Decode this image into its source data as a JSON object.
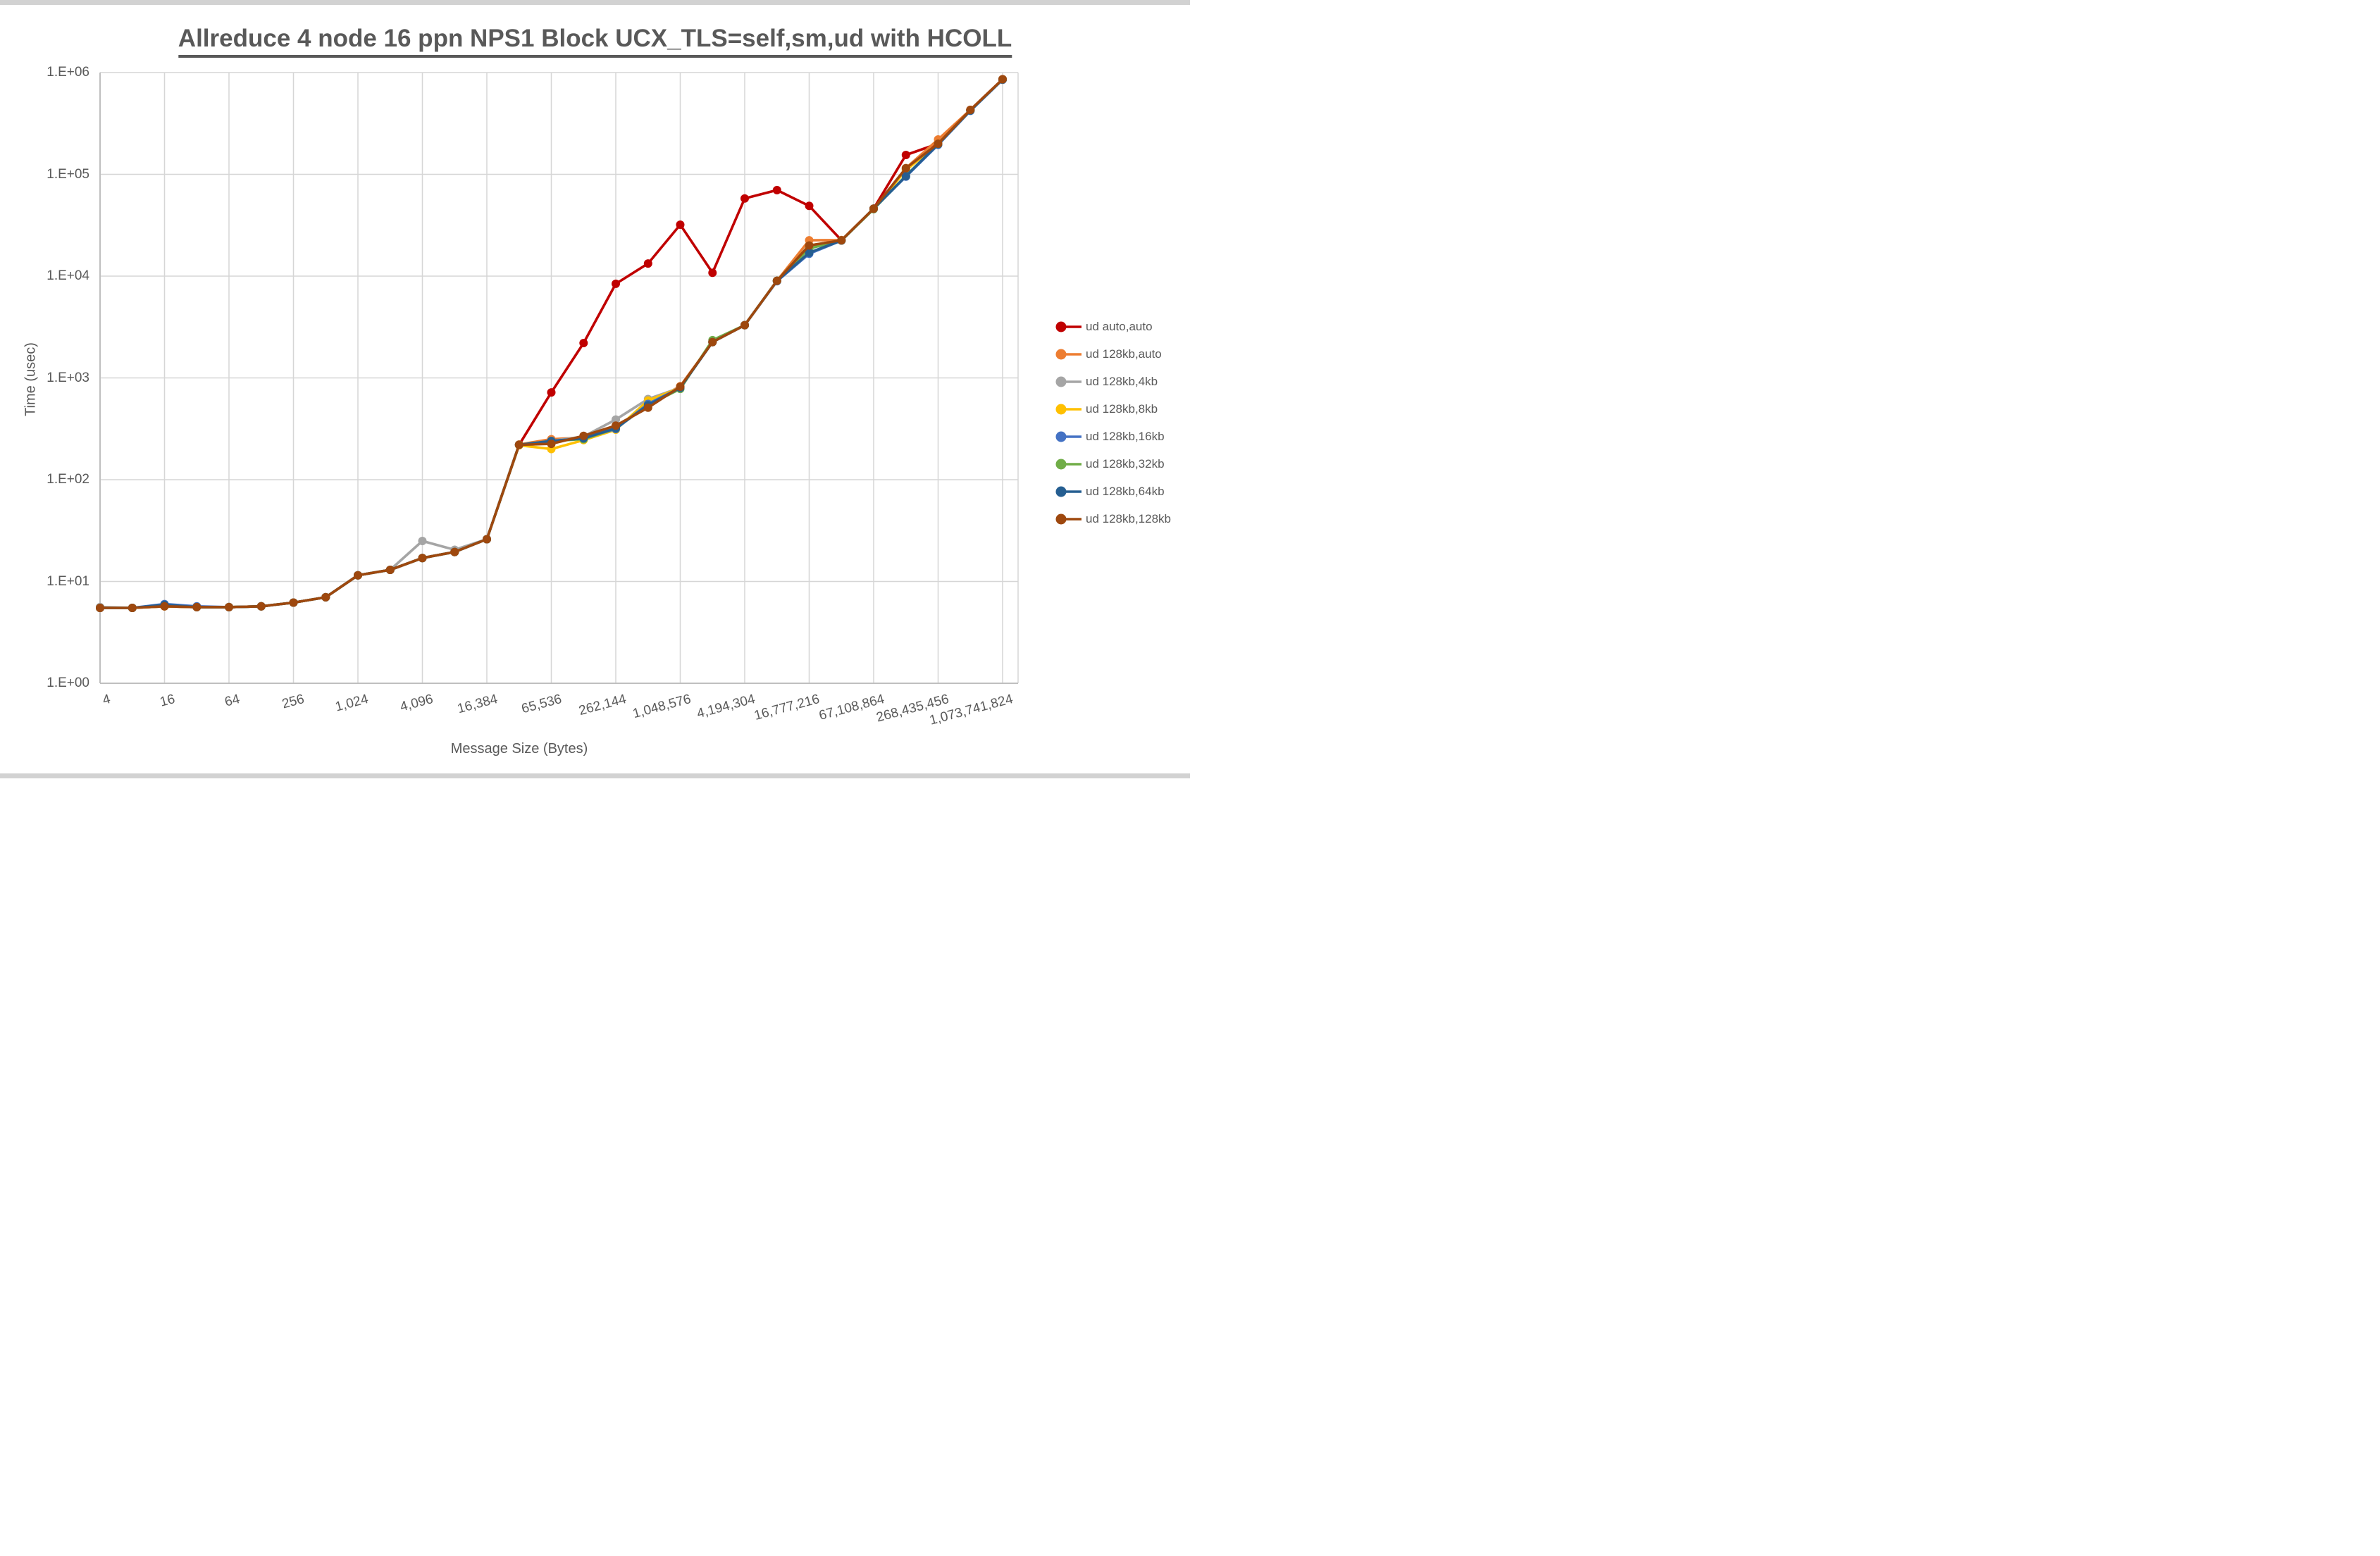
{
  "title": "Allreduce 4 node 16 ppn NPS1 Block UCX_TLS=self,sm,ud with HCOLL",
  "y_axis": {
    "title": "Time (usec)",
    "tick_labels": [
      "1.E+00",
      "1.E+01",
      "1.E+02",
      "1.E+03",
      "1.E+04",
      "1.E+05",
      "1.E+06"
    ]
  },
  "x_axis": {
    "title": "Message Size (Bytes)",
    "tick_labels": [
      "4",
      "16",
      "64",
      "256",
      "1,024",
      "4,096",
      "16,384",
      "65,536",
      "262,144",
      "1,048,576",
      "4,194,304",
      "16,777,216",
      "67,108,864",
      "268,435,456",
      "1,073,741,824"
    ]
  },
  "legend_items": [
    "ud auto,auto",
    "ud 128kb,auto",
    "ud 128kb,4kb",
    "ud 128kb,8kb",
    "ud 128kb,16kb",
    "ud 128kb,32kb",
    "ud 128kb,64kb",
    "ud 128kb,128kb"
  ],
  "colors": {
    "text": "#595959",
    "gridline": "#D6D6D6",
    "axis_frame": "#BFBFBF",
    "background": "#FFFFFF",
    "edge_strip": "#D2D2D2"
  },
  "chart_data": {
    "type": "line",
    "title": "Allreduce 4 node 16 ppn NPS1 Block UCX_TLS=self,sm,ud with HCOLL",
    "xlabel": "Message Size (Bytes)",
    "ylabel": "Time (usec)",
    "x_scale": "log2",
    "y_scale": "log10",
    "ylim": [
      1,
      1000000
    ],
    "grid": true,
    "legend_position": "right",
    "marker": "circle",
    "x": [
      4,
      8,
      16,
      32,
      64,
      128,
      256,
      512,
      1024,
      2048,
      4096,
      8192,
      16384,
      32768,
      65536,
      131072,
      262144,
      524288,
      1048576,
      2097152,
      4194304,
      8388608,
      16777216,
      33554432,
      67108864,
      134217728,
      268435456,
      536870912,
      1073741824
    ],
    "series": [
      {
        "name": "ud auto,auto",
        "color": "#C00000",
        "values": [
          5.5,
          5.5,
          5.7,
          5.6,
          5.6,
          5.7,
          6.2,
          7.0,
          11.5,
          13,
          17,
          19.5,
          26,
          220,
          720,
          2200,
          8400,
          13300,
          32000,
          10800,
          58000,
          70000,
          49000,
          22500,
          46000,
          155000,
          200000,
          430000,
          860000
        ]
      },
      {
        "name": "ud 128kb,auto",
        "color": "#ED7D31",
        "values": [
          5.5,
          5.5,
          5.8,
          5.6,
          5.6,
          5.7,
          6.2,
          7.0,
          11.5,
          13,
          17,
          19.5,
          26,
          222,
          250,
          260,
          320,
          550,
          830,
          2250,
          3300,
          9000,
          22500,
          22600,
          46000,
          115000,
          220000,
          430000,
          860000
        ]
      },
      {
        "name": "ud 128kb,4kb",
        "color": "#A5A5A5",
        "values": [
          5.6,
          5.5,
          5.7,
          5.6,
          5.6,
          5.7,
          6.2,
          7.0,
          11.5,
          13,
          25,
          20.5,
          26,
          220,
          240,
          265,
          390,
          620,
          800,
          2250,
          3300,
          9000,
          20000,
          22400,
          46000,
          110000,
          200000,
          425000,
          855000
        ]
      },
      {
        "name": "ud 128kb,8kb",
        "color": "#FFC000",
        "values": [
          5.5,
          5.5,
          5.7,
          5.6,
          5.6,
          5.7,
          6.2,
          7.0,
          11.5,
          13,
          17,
          19.5,
          26,
          218,
          200,
          245,
          310,
          600,
          800,
          2250,
          3300,
          9000,
          20000,
          22400,
          46000,
          110000,
          200000,
          425000,
          855000
        ]
      },
      {
        "name": "ud 128kb,16kb",
        "color": "#4472C4",
        "values": [
          5.5,
          5.5,
          6.0,
          5.7,
          5.6,
          5.7,
          6.2,
          7.0,
          11.5,
          13,
          17,
          19.5,
          26,
          220,
          240,
          255,
          315,
          555,
          800,
          2250,
          3300,
          8900,
          16600,
          22400,
          46000,
          95000,
          195000,
          420000,
          850000
        ]
      },
      {
        "name": "ud 128kb,32kb",
        "color": "#70AD47",
        "values": [
          5.5,
          5.5,
          5.8,
          5.6,
          5.6,
          5.7,
          6.2,
          7.0,
          11.5,
          13,
          17,
          19.5,
          26,
          220,
          240,
          250,
          320,
          540,
          780,
          2350,
          3300,
          9000,
          18700,
          22400,
          45500,
          97000,
          198000,
          425000,
          855000
        ]
      },
      {
        "name": "ud 128kb,64kb",
        "color": "#255E91",
        "values": [
          5.5,
          5.5,
          5.9,
          5.6,
          5.6,
          5.7,
          6.2,
          7.0,
          11.5,
          13,
          17,
          19.5,
          26,
          220,
          240,
          255,
          320,
          540,
          800,
          2250,
          3300,
          9000,
          17000,
          22400,
          46000,
          96000,
          198000,
          425000,
          855000
        ]
      },
      {
        "name": "ud 128kb,128kb",
        "color": "#9E480E",
        "values": [
          5.5,
          5.5,
          5.7,
          5.6,
          5.6,
          5.7,
          6.2,
          7.0,
          11.5,
          13,
          17,
          19.5,
          26,
          220,
          225,
          270,
          340,
          510,
          820,
          2250,
          3300,
          9000,
          20000,
          22500,
          46000,
          115000,
          200000,
          430000,
          860000
        ]
      }
    ]
  }
}
